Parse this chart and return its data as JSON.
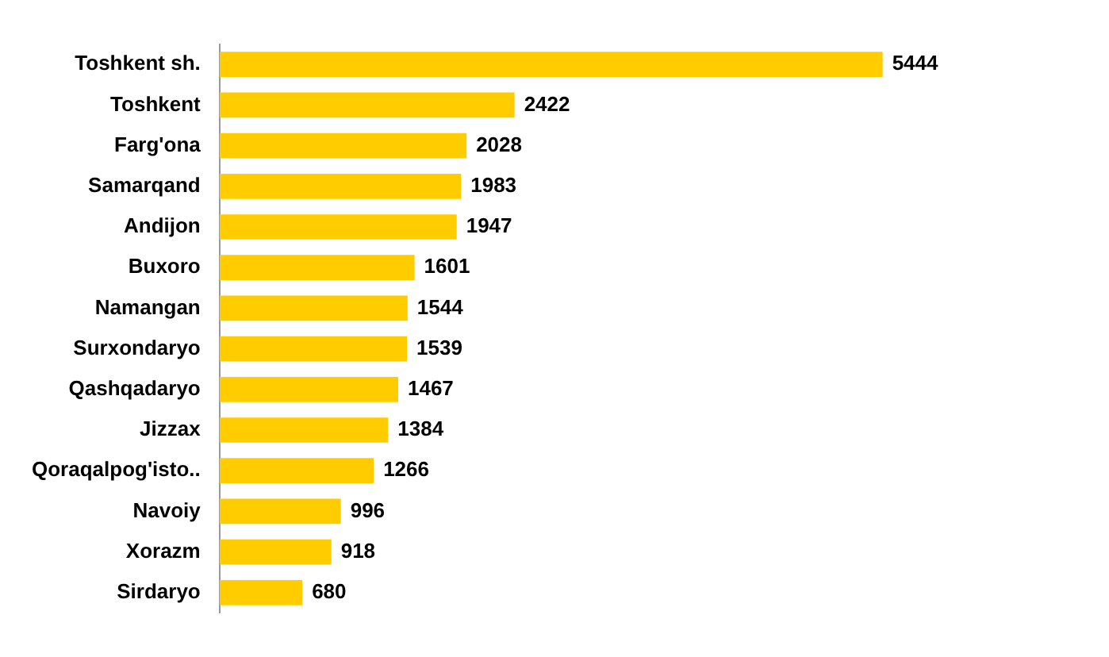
{
  "chart_data": {
    "type": "bar",
    "orientation": "horizontal",
    "categories": [
      "Toshkent sh.",
      "Toshkent",
      "Farg'ona",
      "Samarqand",
      "Andijon",
      "Buxoro",
      "Namangan",
      "Surxondaryo",
      "Qashqadaryo",
      "Jizzax",
      "Qoraqalpog'isto..",
      "Navoiy",
      "Xorazm",
      "Sirdaryo"
    ],
    "values": [
      5444,
      2422,
      2028,
      1983,
      1947,
      1601,
      1544,
      1539,
      1467,
      1384,
      1266,
      996,
      918,
      680
    ],
    "color": "#ffcc00",
    "data_labels": true
  }
}
